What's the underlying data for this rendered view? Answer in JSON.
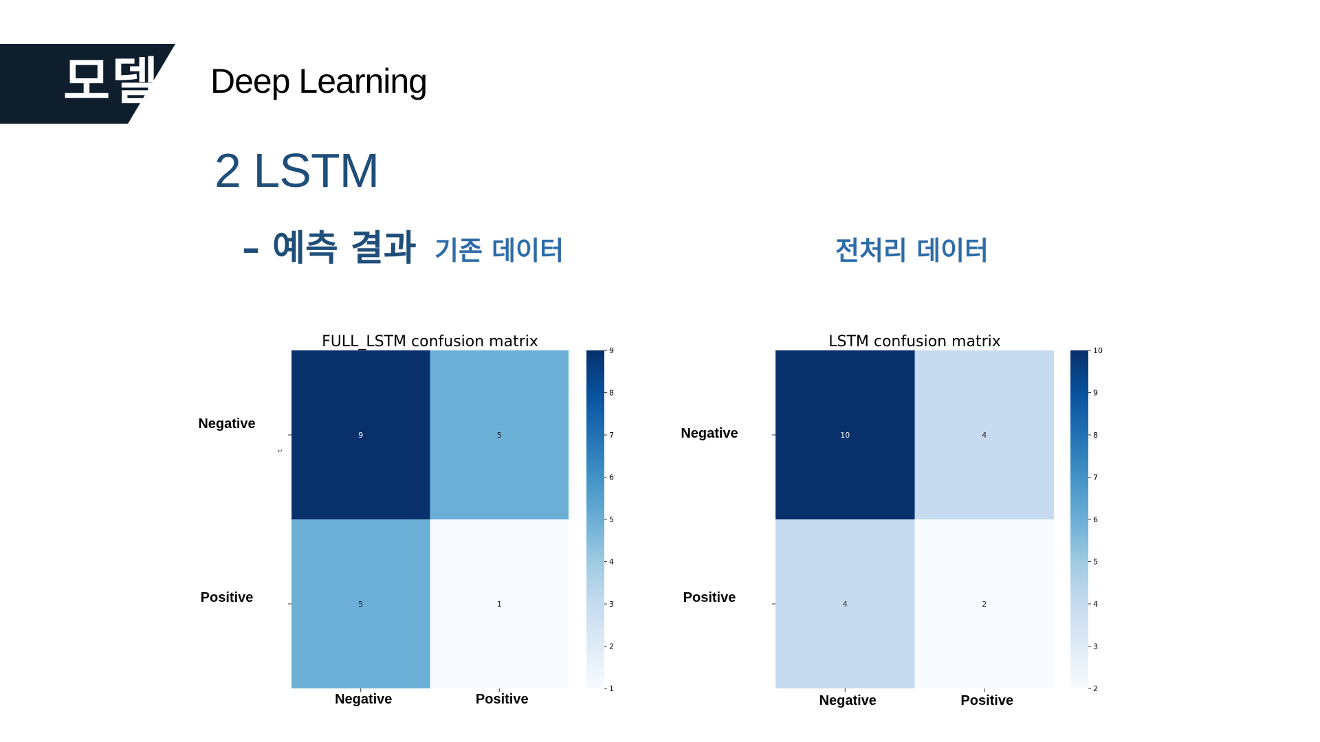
{
  "header": {
    "badge": "모델",
    "title": "Deep Learning"
  },
  "section": {
    "title": "2 LSTM",
    "subtitle": "– 예측 결과",
    "label_left": "기존 데이터",
    "label_right": "전처리 데이터"
  },
  "chart_data": [
    {
      "type": "heatmap",
      "title": "FULL_LSTM confusion matrix",
      "x_categories": [
        "Negative",
        "Positive"
      ],
      "y_categories": [
        "Negative",
        "Positive"
      ],
      "values": [
        [
          9,
          5
        ],
        [
          5,
          1
        ]
      ],
      "colorbar": {
        "min": 1,
        "max": 9,
        "ticks": [
          1,
          2,
          3,
          4,
          5,
          6,
          7,
          8,
          9
        ]
      },
      "ylabel": "t",
      "colormap": "Blues"
    },
    {
      "type": "heatmap",
      "title": "LSTM confusion matrix",
      "x_categories": [
        "Negative",
        "Positive"
      ],
      "y_categories": [
        "Negative",
        "Positive"
      ],
      "values": [
        [
          10,
          4
        ],
        [
          4,
          2
        ]
      ],
      "colorbar": {
        "min": 2,
        "max": 10,
        "ticks": [
          2,
          3,
          4,
          5,
          6,
          7,
          8,
          9,
          10
        ]
      },
      "colormap": "Blues"
    }
  ],
  "colors": {
    "badge_bg": "#0f1e2c",
    "title_blue": "#1f4e79",
    "label_blue": "#2e6ca8"
  }
}
